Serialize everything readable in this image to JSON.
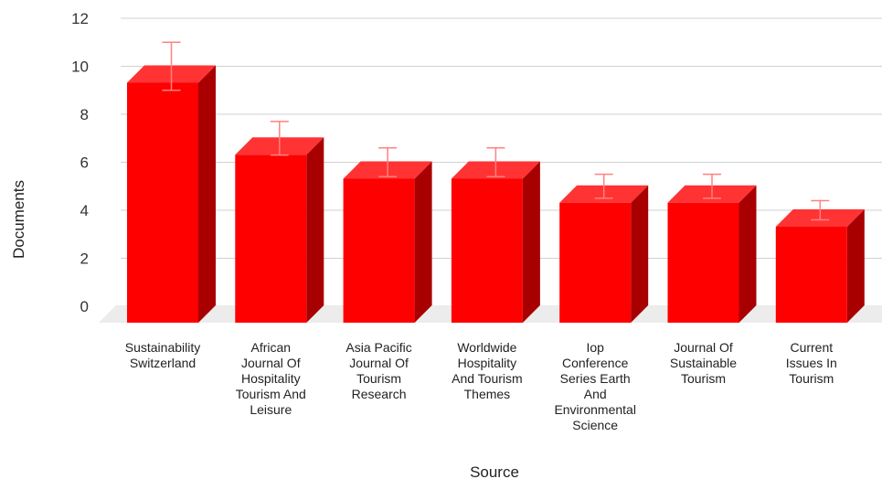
{
  "chart_data": {
    "type": "bar",
    "style": "3d",
    "xlabel": "Source",
    "ylabel": "Documents",
    "ylim": [
      0,
      12
    ],
    "yticks": [
      "0",
      "2",
      "4",
      "6",
      "8",
      "10",
      "12"
    ],
    "grid": true,
    "legend": "none",
    "categories": [
      [
        "Sustainability",
        "Switzerland"
      ],
      [
        "African",
        "Journal Of",
        "Hospitality",
        "Tourism And",
        "Leisure"
      ],
      [
        "Asia Pacific",
        "Journal Of",
        "Tourism",
        "Research"
      ],
      [
        "Worldwide",
        "Hospitality",
        "And Tourism",
        "Themes"
      ],
      [
        "Iop",
        "Conference",
        "Series Earth",
        "And",
        "Environmental",
        "Science"
      ],
      [
        "Journal Of",
        "Sustainable",
        "Tourism"
      ],
      [
        "Current",
        "Issues In",
        "Tourism"
      ]
    ],
    "values": [
      10,
      7,
      6,
      6,
      5,
      5,
      4
    ],
    "error_bars": [
      [
        9,
        11
      ],
      [
        6.3,
        7.7
      ],
      [
        5.4,
        6.6
      ],
      [
        5.4,
        6.6
      ],
      [
        4.5,
        5.5
      ],
      [
        4.5,
        5.5
      ],
      [
        3.6,
        4.4
      ]
    ],
    "colors": {
      "front": "#ff0000",
      "top": "#ff3333",
      "side": "#a80000",
      "error_bar": "#ff8080",
      "floor": "#ececec"
    }
  }
}
